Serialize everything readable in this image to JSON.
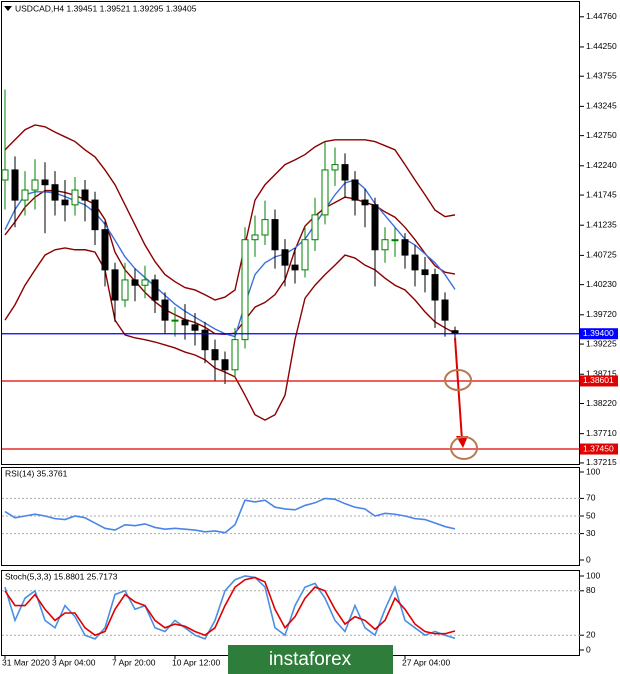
{
  "chart_data": [
    {
      "type": "candlestick",
      "title": "USDCAD,H4  1.39451 1.39521 1.39295 1.39405",
      "categories": [
        "31 Mar 2020",
        null,
        null,
        null,
        null,
        "3 Apr 04:00",
        null,
        null,
        null,
        null,
        null,
        "7 Apr 20:00",
        null,
        null,
        null,
        null,
        null,
        "10 Apr 12:00",
        null,
        null,
        null,
        null,
        null,
        null,
        null,
        null,
        null,
        null,
        null,
        null,
        null,
        null,
        null,
        null,
        null,
        null,
        null,
        null,
        null,
        null,
        "27 Apr 04:00",
        null,
        null,
        null,
        null,
        null
      ],
      "open": [
        1.42,
        1.4217,
        1.4166,
        1.4183,
        1.42,
        1.4192,
        1.4166,
        1.4158,
        1.4183,
        1.4166,
        1.4116,
        1.4048,
        1.3997,
        1.4031,
        1.4022,
        1.4031,
        1.3997,
        1.3963,
        1.3963,
        1.3955,
        1.3946,
        1.3913,
        1.3896,
        1.3879,
        1.393,
        1.4099,
        1.4107,
        1.4133,
        1.4082,
        1.4056,
        1.4048,
        1.4099,
        1.4141,
        1.4217,
        1.4226,
        1.42,
        1.4166,
        1.4158,
        1.4082,
        1.4099,
        1.4099,
        1.4073,
        1.4048,
        1.404,
        1.3997,
        1.39451
      ],
      "high": [
        1.4353,
        1.424,
        1.4215,
        1.4235,
        1.423,
        1.4215,
        1.42,
        1.4205,
        1.42,
        1.418,
        1.413,
        1.406,
        1.406,
        1.405,
        1.4055,
        1.404,
        1.401,
        1.3985,
        1.399,
        1.3975,
        1.396,
        1.393,
        1.391,
        1.395,
        1.412,
        1.414,
        1.4165,
        1.415,
        1.41,
        1.4085,
        1.412,
        1.417,
        1.4265,
        1.4255,
        1.4245,
        1.4215,
        1.4185,
        1.417,
        1.412,
        1.412,
        1.411,
        1.409,
        1.407,
        1.405,
        1.401,
        1.39521
      ],
      "low": [
        1.415,
        1.412,
        1.414,
        1.415,
        1.411,
        1.414,
        1.413,
        1.414,
        1.413,
        1.409,
        1.402,
        1.396,
        1.3985,
        1.3995,
        1.4,
        1.3975,
        1.394,
        1.3935,
        1.393,
        1.392,
        1.389,
        1.386,
        1.3855,
        1.3865,
        1.3915,
        1.407,
        1.409,
        1.405,
        1.402,
        1.4025,
        1.4035,
        1.408,
        1.4125,
        1.419,
        1.417,
        1.414,
        1.412,
        1.402,
        1.406,
        1.407,
        1.405,
        1.402,
        1.401,
        1.395,
        1.3935,
        1.39295
      ],
      "close": [
        1.4217,
        1.4166,
        1.4183,
        1.42,
        1.4192,
        1.4166,
        1.4158,
        1.4183,
        1.4166,
        1.4116,
        1.4048,
        1.3997,
        1.4031,
        1.4022,
        1.4031,
        1.3997,
        1.3963,
        1.3963,
        1.3955,
        1.3946,
        1.3913,
        1.3896,
        1.3879,
        1.393,
        1.4099,
        1.4107,
        1.4133,
        1.4082,
        1.4056,
        1.4048,
        1.4099,
        1.4141,
        1.4217,
        1.4226,
        1.42,
        1.4166,
        1.4158,
        1.4082,
        1.4099,
        1.4099,
        1.4073,
        1.4048,
        1.404,
        1.3997,
        1.3963,
        1.39405
      ],
      "up_color": "#008000",
      "down_color": "#000000",
      "lines": [
        {
          "color": "#8b0000",
          "values": [
            1.4251,
            1.4268,
            1.4285,
            1.4293,
            1.429,
            1.4281,
            1.4273,
            1.4265,
            1.4251,
            1.4239,
            1.4217,
            1.4192,
            1.4158,
            1.4124,
            1.409,
            1.4062,
            1.404,
            1.4028,
            1.4018,
            1.4014,
            1.4006,
            1.3997,
            1.4002,
            1.4014,
            1.409,
            1.4166,
            1.4192,
            1.4209,
            1.4226,
            1.4234,
            1.4243,
            1.4256,
            1.4265,
            1.4268,
            1.4268,
            1.4268,
            1.4268,
            1.4265,
            1.4258,
            1.4251,
            1.4226,
            1.42,
            1.4175,
            1.4149,
            1.4138,
            1.4141
          ]
        },
        {
          "color": "#8b0000",
          "values": [
            1.4107,
            1.4129,
            1.4154,
            1.4171,
            1.4182,
            1.4182,
            1.4179,
            1.4174,
            1.4167,
            1.4159,
            1.4133,
            1.4078,
            1.4048,
            1.4029,
            1.401,
            1.3994,
            1.3981,
            1.3972,
            1.3964,
            1.3959,
            1.3951,
            1.394,
            1.3939,
            1.3941,
            1.3963,
            1.3985,
            1.3993,
            1.4006,
            1.4031,
            1.4082,
            1.4122,
            1.4139,
            1.4153,
            1.4162,
            1.4171,
            1.4168,
            1.4162,
            1.4157,
            1.4146,
            1.4137,
            1.412,
            1.4099,
            1.4076,
            1.4055,
            1.4044,
            1.4041
          ]
        },
        {
          "color": "#8b0000",
          "values": [
            1.3963,
            1.3989,
            1.4022,
            1.4048,
            1.4073,
            1.4082,
            1.4085,
            1.4082,
            1.4082,
            1.4078,
            1.4048,
            1.3963,
            1.3938,
            1.3933,
            1.393,
            1.3926,
            1.3921,
            1.3916,
            1.3909,
            1.3904,
            1.3896,
            1.3882,
            1.3875,
            1.3867,
            1.3836,
            1.3803,
            1.3794,
            1.3803,
            1.3836,
            1.393,
            1.4,
            1.4022,
            1.404,
            1.4056,
            1.4073,
            1.4068,
            1.4056,
            1.4048,
            1.4034,
            1.4022,
            1.4014,
            1.3997,
            1.3977,
            1.396,
            1.395,
            1.3941
          ]
        },
        {
          "color": "#3c6fe0",
          "values": [
            1.4116,
            1.415,
            1.4175,
            1.418,
            1.418,
            1.4178,
            1.4172,
            1.4165,
            1.4158,
            1.4145,
            1.4125,
            1.4098,
            1.407,
            1.405,
            1.4035,
            1.402,
            1.4005,
            1.399,
            1.3978,
            1.3968,
            1.3958,
            1.3948,
            1.394,
            1.3935,
            1.399,
            1.404,
            1.406,
            1.407,
            1.4075,
            1.4085,
            1.41,
            1.4125,
            1.415,
            1.4175,
            1.4195,
            1.42,
            1.4185,
            1.416,
            1.414,
            1.412,
            1.41,
            1.409,
            1.4075,
            1.406,
            1.404,
            1.4015
          ]
        }
      ],
      "levels": [
        {
          "value": 1.394,
          "label": "1.39400",
          "color": "#0000ff"
        },
        {
          "value": 1.38601,
          "label": "1.38601",
          "color": "#e00000"
        },
        {
          "value": 1.3745,
          "label": "1.37450",
          "color": "#e00000"
        }
      ],
      "ylim": [
        1.3718,
        1.4501
      ],
      "yticks": [
        {
          "value": 1.4476,
          "label": "1.44760"
        },
        {
          "value": 1.4425,
          "label": "1.44250"
        },
        1.43755,
        1.43245,
        {
          "value": 1.4275,
          "label": "1.42750"
        },
        {
          "value": 1.4224,
          "label": "1.42240"
        },
        1.41745,
        1.41235,
        1.40725,
        {
          "value": 1.4023,
          "label": "1.40230"
        },
        {
          "value": 1.3972,
          "label": "1.39720"
        },
        1.39225,
        1.38715,
        {
          "value": 1.3822,
          "label": "1.38220"
        },
        {
          "value": 1.3771,
          "label": "1.37710"
        },
        1.37215
      ]
    },
    {
      "type": "line",
      "title": "RSI(14) 35.3761",
      "series": [
        {
          "color": "#4a86e8",
          "values": [
            55,
            48,
            50,
            52,
            50,
            47,
            46,
            50,
            48,
            42,
            36,
            34,
            40,
            39,
            41,
            37,
            35,
            36,
            35,
            34,
            32,
            33,
            31,
            40,
            68,
            66,
            68,
            60,
            58,
            57,
            62,
            65,
            70,
            69,
            64,
            60,
            58,
            50,
            53,
            52,
            50,
            47,
            46,
            42,
            38,
            35.3761
          ]
        }
      ],
      "ylim": [
        0,
        100
      ],
      "yticks": [
        100,
        70,
        50,
        30,
        0
      ],
      "levels": [
        70,
        50,
        30
      ]
    },
    {
      "type": "line",
      "title": "Stoch(5,3,3) 15.8801 25.7173",
      "series": [
        {
          "color": "#4a90e2",
          "values": [
            85,
            40,
            70,
            80,
            40,
            30,
            60,
            45,
            20,
            15,
            30,
            75,
            80,
            55,
            60,
            30,
            25,
            40,
            30,
            20,
            15,
            40,
            80,
            95,
            100,
            98,
            85,
            30,
            20,
            60,
            85,
            90,
            70,
            40,
            25,
            60,
            30,
            20,
            55,
            85,
            40,
            30,
            20,
            25,
            20,
            15.8801
          ]
        },
        {
          "color": "#e00000",
          "values": [
            80,
            60,
            60,
            75,
            55,
            40,
            50,
            50,
            30,
            20,
            25,
            55,
            75,
            65,
            60,
            40,
            30,
            35,
            32,
            25,
            20,
            30,
            60,
            85,
            95,
            98,
            92,
            55,
            30,
            45,
            70,
            85,
            80,
            55,
            35,
            45,
            40,
            28,
            40,
            70,
            55,
            35,
            25,
            22,
            22,
            25.7173
          ]
        }
      ],
      "ylim": [
        0,
        100
      ],
      "yticks": [
        100,
        80,
        20,
        0
      ],
      "levels": [
        80,
        20
      ]
    }
  ],
  "watermark": "instaforex"
}
